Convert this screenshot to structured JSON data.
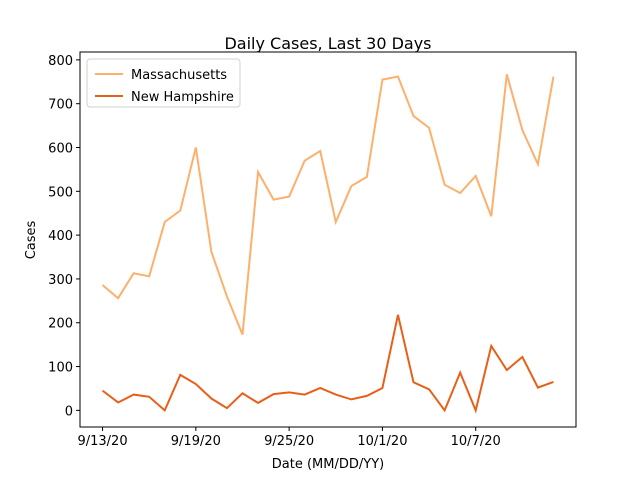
{
  "chart_data": {
    "type": "line",
    "title": "Daily Cases, Last 30 Days",
    "xlabel": "Date (MM/DD/YY)",
    "ylabel": "Cases",
    "categories": [
      "9/13/20",
      null,
      null,
      null,
      null,
      null,
      "9/19/20",
      null,
      null,
      null,
      null,
      null,
      "9/25/20",
      null,
      null,
      null,
      null,
      null,
      "10/1/20",
      null,
      null,
      null,
      null,
      null,
      "10/7/20",
      null,
      null,
      null,
      null,
      null
    ],
    "series": [
      {
        "name": "Massachusetts",
        "color": "#fdb06c",
        "values": [
          286,
          256,
          313,
          306,
          430,
          456,
          600,
          362,
          260,
          173,
          544,
          481,
          488,
          570,
          592,
          430,
          512,
          533,
          755,
          762,
          672,
          645,
          515,
          496,
          535,
          443,
          767,
          640,
          562,
          762
        ]
      },
      {
        "name": "New Hampshire",
        "color": "#e6601a",
        "values": [
          45,
          18,
          36,
          31,
          0,
          81,
          60,
          27,
          5,
          39,
          17,
          37,
          41,
          36,
          51,
          36,
          25,
          33,
          51,
          218,
          64,
          48,
          0,
          86,
          0,
          147,
          92,
          122,
          52,
          65
        ]
      }
    ],
    "ylim": [
      -38,
      818
    ],
    "yticks": [
      0,
      100,
      200,
      300,
      400,
      500,
      600,
      700,
      800
    ],
    "legend": "upper left"
  }
}
